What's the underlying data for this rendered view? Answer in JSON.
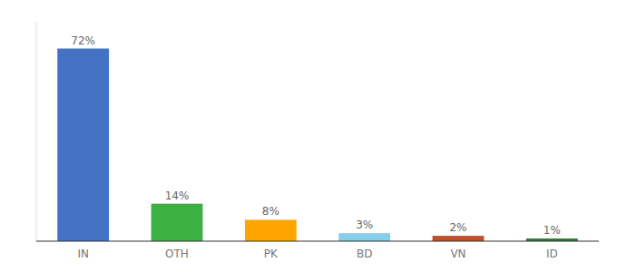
{
  "chart_data": {
    "type": "bar",
    "categories": [
      "IN",
      "OTH",
      "PK",
      "BD",
      "VN",
      "ID"
    ],
    "values": [
      72,
      14,
      8,
      3,
      2,
      1
    ],
    "value_labels": [
      "72%",
      "14%",
      "8%",
      "3%",
      "2%",
      "1%"
    ],
    "colors": [
      "#4472C4",
      "#3CB043",
      "#FFA500",
      "#87CEEB",
      "#C0522A",
      "#2E7D32"
    ],
    "ylim": [
      0,
      82
    ],
    "data_labels": true,
    "tick_labels": "x",
    "grid": false
  }
}
